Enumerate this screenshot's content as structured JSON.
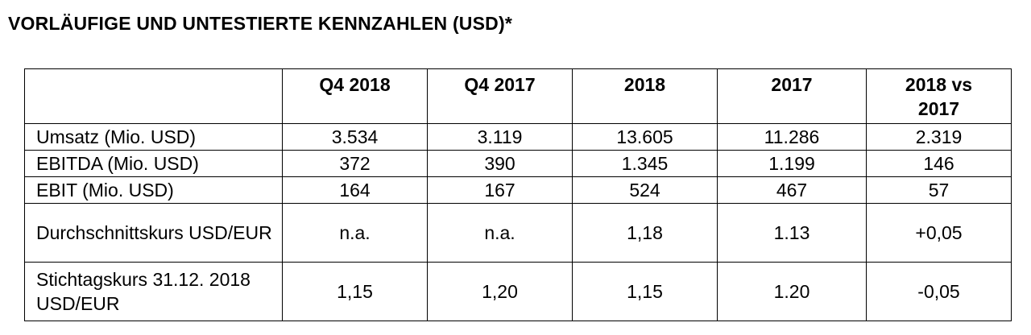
{
  "header": {
    "title": "VORLÄUFIGE UND UNTESTIERTE KENNZAHLEN (USD)*"
  },
  "table": {
    "columns": [
      "Q4 2018",
      "Q4 2017",
      "2018",
      "2017",
      "2018 vs 2017"
    ],
    "rows": [
      {
        "label": "Umsatz (Mio. USD)",
        "cells": [
          "3.534",
          "3.119",
          "13.605",
          "11.286",
          "2.319"
        ]
      },
      {
        "label": "EBITDA (Mio. USD)",
        "cells": [
          "372",
          "390",
          "1.345",
          "1.199",
          "146"
        ]
      },
      {
        "label": "EBIT (Mio. USD)",
        "cells": [
          "164",
          "167",
          "524",
          "467",
          "57"
        ]
      },
      {
        "label": "Durchschnittskurs USD/EUR",
        "cells": [
          "n.a.",
          "n.a.",
          "1,18",
          "1.13",
          "+0,05"
        ]
      },
      {
        "label": "Stichtagskurs 31.12. 2018 USD/EUR",
        "cells": [
          "1,15",
          "1,20",
          "1,15",
          "1.20",
          "-0,05"
        ]
      }
    ]
  }
}
